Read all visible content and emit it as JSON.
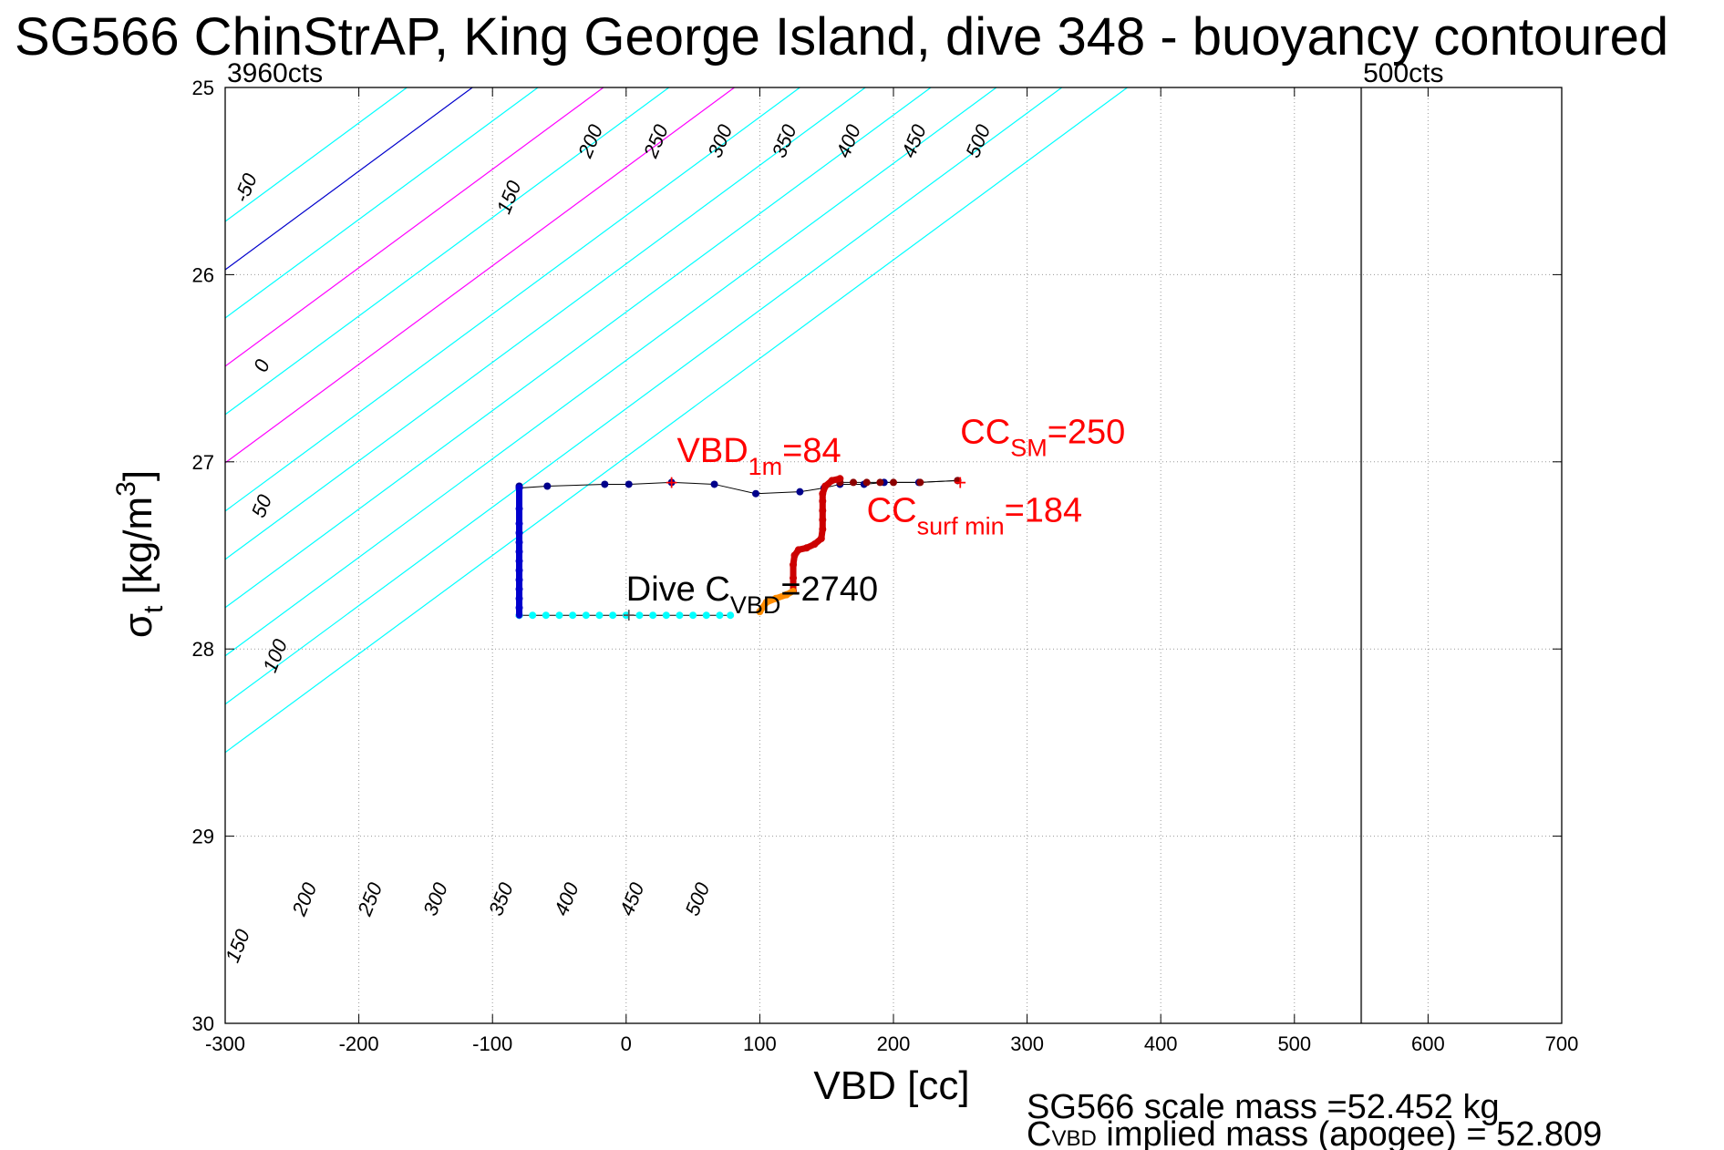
{
  "title": "SG566 ChinStrAP, King George Island, dive 348 - buoyancy contoured",
  "chart_data": {
    "type": "scatter",
    "xlabel": "VBD [cc]",
    "ylabel_main": "σ",
    "ylabel_sub": "t",
    "ylabel_units": " [kg/m",
    "ylabel_sup": "3",
    "ylabel_close": "]",
    "xlim": [
      -300,
      700
    ],
    "ylim": [
      25,
      30
    ],
    "y_reversed": true,
    "grid": "dotted",
    "xticks": [
      -300,
      -200,
      -100,
      0,
      100,
      200,
      300,
      400,
      500,
      600,
      700
    ],
    "yticks": [
      25,
      26,
      27,
      28,
      29,
      30
    ],
    "vbd_limits": {
      "min": {
        "x": -300,
        "label": "3960cts"
      },
      "max": {
        "x": 550,
        "label": "500cts"
      }
    },
    "buoyancy_contours": {
      "slope_cc_per_sigma": -190,
      "levels": [
        {
          "value": -50,
          "color": "#00ffff"
        },
        {
          "value": 0,
          "color": "#0000cc"
        },
        {
          "value": 50,
          "color": "#00ffff"
        },
        {
          "value": 100,
          "color": "#ff00ff"
        },
        {
          "value": 150,
          "color": "#00ffff"
        },
        {
          "value": 200,
          "color": "#ff00ff"
        },
        {
          "value": 250,
          "color": "#00ffff"
        },
        {
          "value": 300,
          "color": "#00ffff"
        },
        {
          "value": 350,
          "color": "#00ffff"
        },
        {
          "value": 400,
          "color": "#00ffff"
        },
        {
          "value": 450,
          "color": "#00ffff"
        },
        {
          "value": 500,
          "color": "#00ffff"
        }
      ],
      "top_labels": [
        {
          "text": "-50",
          "x": -280,
          "y": 25.55
        },
        {
          "text": "0",
          "x": -268,
          "y": 26.5
        },
        {
          "text": "50",
          "x": -268,
          "y": 27.25
        },
        {
          "text": "100",
          "x": -258,
          "y": 28.05
        },
        {
          "text": "150",
          "x": -83,
          "y": 25.6
        },
        {
          "text": "200",
          "x": -22,
          "y": 25.3
        },
        {
          "text": "250",
          "x": 27,
          "y": 25.3
        },
        {
          "text": "300",
          "x": 75,
          "y": 25.3
        },
        {
          "text": "350",
          "x": 123,
          "y": 25.3
        },
        {
          "text": "400",
          "x": 171,
          "y": 25.3
        },
        {
          "text": "450",
          "x": 220,
          "y": 25.3
        },
        {
          "text": "500",
          "x": 268,
          "y": 25.3
        }
      ],
      "bottom_labels": [
        {
          "text": "150",
          "x": -286,
          "y": 29.6
        },
        {
          "text": "200",
          "x": -236,
          "y": 29.35
        },
        {
          "text": "250",
          "x": -187,
          "y": 29.35
        },
        {
          "text": "300",
          "x": -138,
          "y": 29.35
        },
        {
          "text": "350",
          "x": -89,
          "y": 29.35
        },
        {
          "text": "400",
          "x": -40,
          "y": 29.35
        },
        {
          "text": "450",
          "x": 9,
          "y": 29.35
        },
        {
          "text": "500",
          "x": 58,
          "y": 29.35
        }
      ]
    },
    "dive_trace": {
      "line_color": "#000000",
      "segments": [
        {
          "name": "surface",
          "color": "#00008b",
          "points": [
            [
              -80,
              27.13
            ],
            [
              -80,
              27.14
            ],
            [
              -59,
              27.13
            ],
            [
              -16,
              27.12
            ],
            [
              2,
              27.12
            ],
            [
              34,
              27.11
            ],
            [
              66,
              27.12
            ],
            [
              97,
              27.17
            ],
            [
              130,
              27.16
            ],
            [
              148,
              27.14
            ],
            [
              160,
              27.12
            ],
            [
              178,
              27.12
            ],
            [
              193,
              27.11
            ],
            [
              219,
              27.11
            ],
            [
              248,
              27.1
            ]
          ]
        },
        {
          "name": "descent",
          "color": "#0000cd",
          "points": [
            [
              -80,
              27.14
            ],
            [
              -80,
              27.25
            ],
            [
              -80,
              27.33
            ],
            [
              -80,
              27.38
            ],
            [
              -80,
              27.43
            ],
            [
              -80,
              27.48
            ],
            [
              -80,
              27.53
            ],
            [
              -80,
              27.58
            ],
            [
              -80,
              27.63
            ],
            [
              -80,
              27.68
            ],
            [
              -80,
              27.73
            ],
            [
              -80,
              27.78
            ],
            [
              -80,
              27.82
            ]
          ]
        },
        {
          "name": "bottom",
          "color": "#00ffff",
          "points": [
            [
              -80,
              27.82
            ],
            [
              -70,
              27.82
            ],
            [
              -60,
              27.82
            ],
            [
              -50,
              27.82
            ],
            [
              -40,
              27.82
            ],
            [
              -30,
              27.82
            ],
            [
              -20,
              27.82
            ],
            [
              -10,
              27.82
            ],
            [
              0,
              27.82
            ],
            [
              10,
              27.82
            ],
            [
              20,
              27.82
            ],
            [
              30,
              27.82
            ],
            [
              40,
              27.82
            ],
            [
              50,
              27.82
            ],
            [
              60,
              27.82
            ],
            [
              70,
              27.82
            ],
            [
              78,
              27.82
            ]
          ]
        },
        {
          "name": "apogee",
          "color": "#ff8c00",
          "points": [
            [
              100,
              27.8
            ],
            [
              105,
              27.75
            ],
            [
              112,
              27.73
            ],
            [
              120,
              27.71
            ],
            [
              125,
              27.69
            ]
          ]
        },
        {
          "name": "climb",
          "color": "#cc0000",
          "points": [
            [
              125,
              27.69
            ],
            [
              125,
              27.62
            ],
            [
              125,
              27.55
            ],
            [
              126,
              27.5
            ],
            [
              129,
              27.47
            ],
            [
              135,
              27.46
            ],
            [
              141,
              27.44
            ],
            [
              146,
              27.41
            ],
            [
              147,
              27.36
            ],
            [
              147,
              27.31
            ],
            [
              147,
              27.26
            ],
            [
              147,
              27.21
            ],
            [
              147,
              27.17
            ],
            [
              149,
              27.13
            ],
            [
              154,
              27.1
            ],
            [
              160,
              27.09
            ]
          ]
        },
        {
          "name": "surface-return",
          "color": "#8b0000",
          "points": [
            [
              160,
              27.11
            ],
            [
              170,
              27.11
            ],
            [
              180,
              27.11
            ],
            [
              190,
              27.11
            ],
            [
              200,
              27.11
            ],
            [
              220,
              27.11
            ],
            [
              248,
              27.1
            ]
          ]
        }
      ]
    },
    "annotations": [
      {
        "main": "VBD",
        "sub": "1m",
        "suffix": "=84",
        "x": 38,
        "y": 27.0,
        "color": "#ff0000",
        "size": 38
      },
      {
        "main": "CC",
        "sub": "SM",
        "suffix": "=250",
        "x": 250,
        "y": 26.9,
        "color": "#ff0000",
        "size": 38
      },
      {
        "main": "CC",
        "sub": "surf min",
        "suffix": "=184",
        "x": 180,
        "y": 27.32,
        "color": "#ff0000",
        "size": 38
      },
      {
        "main": "Dive C",
        "sub": "VBD",
        "suffix": "=2740",
        "x": 0,
        "y": 27.74,
        "color": "#000000",
        "size": 38
      }
    ],
    "markers": [
      {
        "x": 2,
        "y": 27.82,
        "symbol": "+",
        "color": "#555555"
      },
      {
        "x": 250,
        "y": 27.11,
        "symbol": "+",
        "color": "#ff0000"
      },
      {
        "x": 34,
        "y": 27.11,
        "symbol": "+",
        "color": "#ff0000"
      }
    ]
  },
  "footer": {
    "line1": "SG566 scale mass =52.452 kg",
    "line2_main": "C",
    "line2_sub": "VBD",
    "line2_rest": " implied mass (apogee) = 52.809"
  }
}
